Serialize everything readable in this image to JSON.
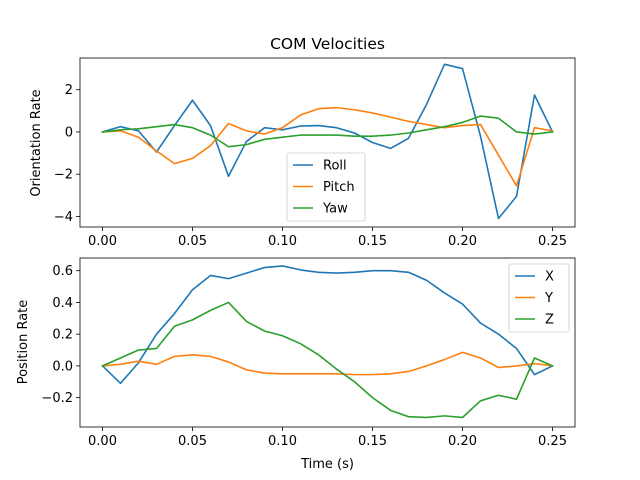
{
  "chart_data": [
    {
      "type": "line",
      "title": "COM Velocities",
      "xlabel": "",
      "ylabel": "Orientation Rate",
      "xlim": [
        -0.0125,
        0.2625
      ],
      "ylim": [
        -4.5,
        3.5
      ],
      "xticks": [
        0.0,
        0.05,
        0.1,
        0.15,
        0.2,
        0.25
      ],
      "xtick_labels": [
        "0.00",
        "0.05",
        "0.10",
        "0.15",
        "0.20",
        "0.25"
      ],
      "yticks": [
        -4,
        -2,
        0,
        2
      ],
      "ytick_labels": [
        "−4",
        "−2",
        "0",
        "2"
      ],
      "grid": false,
      "legend_placement": "lower-center",
      "x": [
        0.0,
        0.01,
        0.02,
        0.03,
        0.04,
        0.05,
        0.06,
        0.07,
        0.08,
        0.09,
        0.1,
        0.11,
        0.12,
        0.13,
        0.14,
        0.15,
        0.16,
        0.17,
        0.18,
        0.19,
        0.2,
        0.21,
        0.22,
        0.23,
        0.24,
        0.25
      ],
      "series": [
        {
          "name": "Roll",
          "color": "#1f77b4",
          "values": [
            0.0,
            0.25,
            0.05,
            -0.95,
            0.3,
            1.5,
            0.3,
            -2.1,
            -0.45,
            0.2,
            0.1,
            0.28,
            0.3,
            0.2,
            -0.05,
            -0.5,
            -0.78,
            -0.3,
            1.3,
            3.2,
            3.0,
            -0.2,
            -4.1,
            -3.05,
            1.75,
            0.0
          ]
        },
        {
          "name": "Pitch",
          "color": "#ff7f0e",
          "values": [
            0.0,
            0.05,
            -0.25,
            -0.9,
            -1.5,
            -1.25,
            -0.65,
            0.4,
            0.05,
            -0.1,
            0.2,
            0.8,
            1.1,
            1.15,
            1.05,
            0.9,
            0.7,
            0.5,
            0.35,
            0.2,
            0.3,
            0.35,
            -1.1,
            -2.55,
            0.2,
            0.05
          ]
        },
        {
          "name": "Yaw",
          "color": "#2ca02c",
          "values": [
            0.0,
            0.1,
            0.15,
            0.25,
            0.35,
            0.2,
            -0.15,
            -0.7,
            -0.6,
            -0.35,
            -0.25,
            -0.15,
            -0.15,
            -0.15,
            -0.2,
            -0.2,
            -0.15,
            -0.05,
            0.1,
            0.25,
            0.45,
            0.75,
            0.65,
            0.0,
            -0.1,
            0.0
          ]
        }
      ]
    },
    {
      "type": "line",
      "title": "",
      "xlabel": "Time (s)",
      "ylabel": "Position Rate",
      "xlim": [
        -0.0125,
        0.2625
      ],
      "ylim": [
        -0.385,
        0.68
      ],
      "xticks": [
        0.0,
        0.05,
        0.1,
        0.15,
        0.2,
        0.25
      ],
      "xtick_labels": [
        "0.00",
        "0.05",
        "0.10",
        "0.15",
        "0.20",
        "0.25"
      ],
      "yticks": [
        -0.2,
        0.0,
        0.2,
        0.4,
        0.6
      ],
      "ytick_labels": [
        "−0.2",
        "0.0",
        "0.2",
        "0.4",
        "0.6"
      ],
      "grid": false,
      "legend_placement": "top-right",
      "x": [
        0.0,
        0.01,
        0.02,
        0.03,
        0.04,
        0.05,
        0.06,
        0.07,
        0.08,
        0.09,
        0.1,
        0.11,
        0.12,
        0.13,
        0.14,
        0.15,
        0.16,
        0.17,
        0.18,
        0.19,
        0.2,
        0.21,
        0.22,
        0.23,
        0.24,
        0.25
      ],
      "series": [
        {
          "name": "X",
          "color": "#1f77b4",
          "values": [
            0.0,
            -0.11,
            0.02,
            0.2,
            0.33,
            0.48,
            0.57,
            0.55,
            0.585,
            0.62,
            0.63,
            0.605,
            0.59,
            0.585,
            0.59,
            0.6,
            0.6,
            0.59,
            0.54,
            0.46,
            0.39,
            0.27,
            0.2,
            0.11,
            -0.055,
            0.0
          ]
        },
        {
          "name": "Y",
          "color": "#ff7f0e",
          "values": [
            0.0,
            0.01,
            0.03,
            0.01,
            0.06,
            0.07,
            0.06,
            0.025,
            -0.025,
            -0.045,
            -0.05,
            -0.05,
            -0.05,
            -0.05,
            -0.055,
            -0.055,
            -0.05,
            -0.035,
            0.0,
            0.04,
            0.085,
            0.05,
            -0.01,
            0.0,
            0.015,
            0.0
          ]
        },
        {
          "name": "Z",
          "color": "#2ca02c",
          "values": [
            0.0,
            0.05,
            0.1,
            0.11,
            0.25,
            0.29,
            0.35,
            0.4,
            0.28,
            0.22,
            0.19,
            0.14,
            0.07,
            -0.02,
            -0.1,
            -0.2,
            -0.28,
            -0.32,
            -0.325,
            -0.315,
            -0.325,
            -0.22,
            -0.185,
            -0.21,
            0.05,
            0.0
          ]
        }
      ]
    }
  ]
}
